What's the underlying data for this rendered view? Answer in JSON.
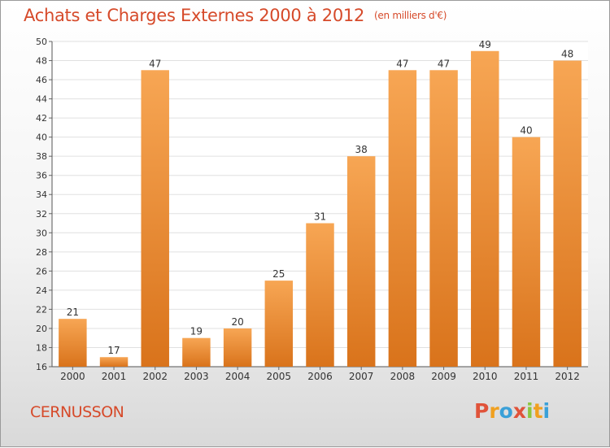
{
  "header": {
    "title": "Achats et Charges Externes 2000 à 2012",
    "unit": "(en milliers d'€)"
  },
  "footer": {
    "commune": "CERNUSSON",
    "logo_text": "Proxiti",
    "logo_colors": [
      "#e0533a",
      "#f0a020",
      "#3aa0d8",
      "#e0533a",
      "#8cc63f",
      "#f0a020",
      "#3aa0d8"
    ]
  },
  "chart_data": {
    "type": "bar",
    "categories": [
      "2000",
      "2001",
      "2002",
      "2003",
      "2004",
      "2005",
      "2006",
      "2007",
      "2008",
      "2009",
      "2010",
      "2011",
      "2012"
    ],
    "values": [
      21,
      17,
      47,
      19,
      20,
      25,
      31,
      38,
      47,
      47,
      49,
      40,
      48
    ],
    "ylim": [
      16,
      50
    ],
    "yticks": [
      16,
      18,
      20,
      22,
      24,
      26,
      28,
      30,
      32,
      34,
      36,
      38,
      40,
      42,
      44,
      46,
      48,
      50
    ],
    "grid": true,
    "colors": {
      "bar_light": "#f7a654",
      "bar_dark": "#d9731b",
      "grid": "#e0e0e0"
    }
  }
}
